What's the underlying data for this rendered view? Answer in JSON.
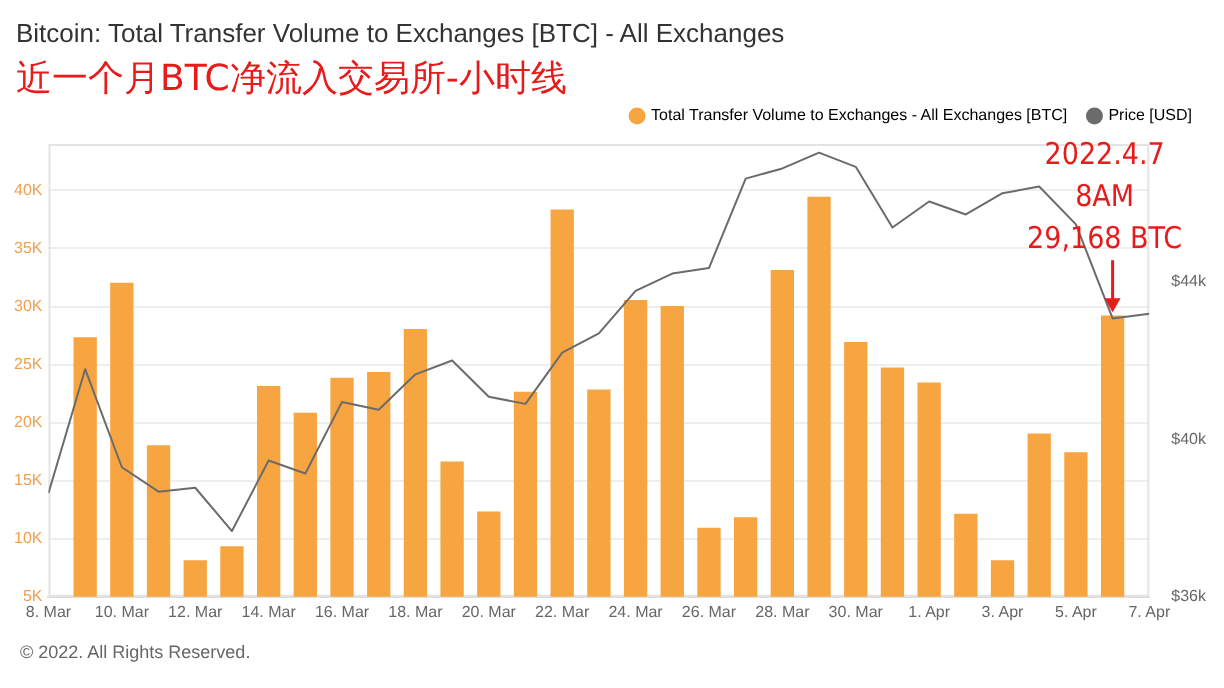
{
  "chart_data": {
    "type": "bar",
    "title": "Bitcoin: Total Transfer Volume to Exchanges [BTC] - All Exchanges",
    "subtitle": "近一个月BTC净流入交易所-小时线",
    "series": [
      {
        "name": "Total Transfer Volume to Exchanges - All Exchanges [BTC]",
        "color": "#f7a541",
        "x": [
          "--03-09",
          "--03-10",
          "--03-11",
          "--03-12",
          "--03-13",
          "--03-14",
          "--03-15",
          "--03-16",
          "--03-17",
          "--03-18",
          "--03-19",
          "--03-20",
          "--03-21",
          "--03-22",
          "--03-23",
          "--03-24",
          "--03-25",
          "--03-26",
          "--03-27",
          "--03-28",
          "--03-29",
          "--03-30",
          "--03-31",
          "--04-01",
          "--04-02",
          "--04-03",
          "--04-04",
          "--04-05",
          "--04-06"
        ],
        "values": [
          27300,
          32000,
          18000,
          8100,
          9300,
          23100,
          20800,
          23800,
          24300,
          28000,
          16600,
          12300,
          22600,
          38300,
          22800,
          30500,
          30000,
          10900,
          11800,
          33100,
          39400,
          26900,
          24700,
          23400,
          12100,
          8100,
          19000,
          17400,
          29168
        ]
      },
      {
        "name": "Price [USD]",
        "type": "line",
        "axis": "y2",
        "color": "#6b6b6b",
        "marker": "none",
        "line_style": "solid",
        "x": [
          "--03-08",
          "--03-09",
          "--03-10",
          "--03-11",
          "--03-12",
          "--03-13",
          "--03-14",
          "--03-15",
          "--03-16",
          "--03-17",
          "--03-18",
          "--03-19",
          "--03-20",
          "--03-21",
          "--03-22",
          "--03-23",
          "--03-24",
          "--03-25",
          "--03-26",
          "--03-27",
          "--03-28",
          "--03-29",
          "--03-30",
          "--03-31",
          "--04-01",
          "--04-02",
          "--04-03",
          "--04-04",
          "--04-05",
          "--04-06",
          "--04-07"
        ],
        "values": [
          38630,
          41780,
          39290,
          38670,
          38770,
          37670,
          39460,
          39130,
          40950,
          40750,
          41650,
          42000,
          41080,
          40900,
          42200,
          42690,
          43770,
          44210,
          44350,
          46620,
          46880,
          47280,
          46920,
          45380,
          46040,
          45710,
          46250,
          46420,
          45460,
          43070,
          43190
        ]
      }
    ],
    "xlim": [
      "--03-08",
      "--04-07"
    ],
    "xticks": [
      {
        "value": "--03-08",
        "label": "8. Mar"
      },
      {
        "value": "--03-10",
        "label": "10. Mar"
      },
      {
        "value": "--03-12",
        "label": "12. Mar"
      },
      {
        "value": "--03-14",
        "label": "14. Mar"
      },
      {
        "value": "--03-16",
        "label": "16. Mar"
      },
      {
        "value": "--03-18",
        "label": "18. Mar"
      },
      {
        "value": "--03-20",
        "label": "20. Mar"
      },
      {
        "value": "--03-22",
        "label": "22. Mar"
      },
      {
        "value": "--03-24",
        "label": "24. Mar"
      },
      {
        "value": "--03-26",
        "label": "26. Mar"
      },
      {
        "value": "--03-28",
        "label": "28. Mar"
      },
      {
        "value": "--03-30",
        "label": "30. Mar"
      },
      {
        "value": "--04-01",
        "label": "1. Apr"
      },
      {
        "value": "--04-03",
        "label": "3. Apr"
      },
      {
        "value": "--04-05",
        "label": "5. Apr"
      },
      {
        "value": "--04-07",
        "label": "7. Apr"
      }
    ],
    "ylim": [
      5000,
      44000
    ],
    "yticks": [
      {
        "value": 5000,
        "label": "5K"
      },
      {
        "value": 10000,
        "label": "10K"
      },
      {
        "value": 15000,
        "label": "15K"
      },
      {
        "value": 20000,
        "label": "20K"
      },
      {
        "value": 25000,
        "label": "25K"
      },
      {
        "value": 30000,
        "label": "30K"
      },
      {
        "value": 35000,
        "label": "35K"
      },
      {
        "value": 40000,
        "label": "40K"
      }
    ],
    "y2lim": [
      36000,
      47500
    ],
    "y2ticks": [
      {
        "value": 36000,
        "label": "$36k"
      },
      {
        "value": 40000,
        "label": "$40k"
      },
      {
        "value": 44000,
        "label": "$44k"
      }
    ],
    "grid": "y",
    "legend": "top right",
    "annotations": [
      {
        "text": "2022.4.7\n8AM\n29,168 BTC",
        "x": "--04-06",
        "y": 29168
      },
      "© 2022. All Rights Reserved."
    ]
  }
}
